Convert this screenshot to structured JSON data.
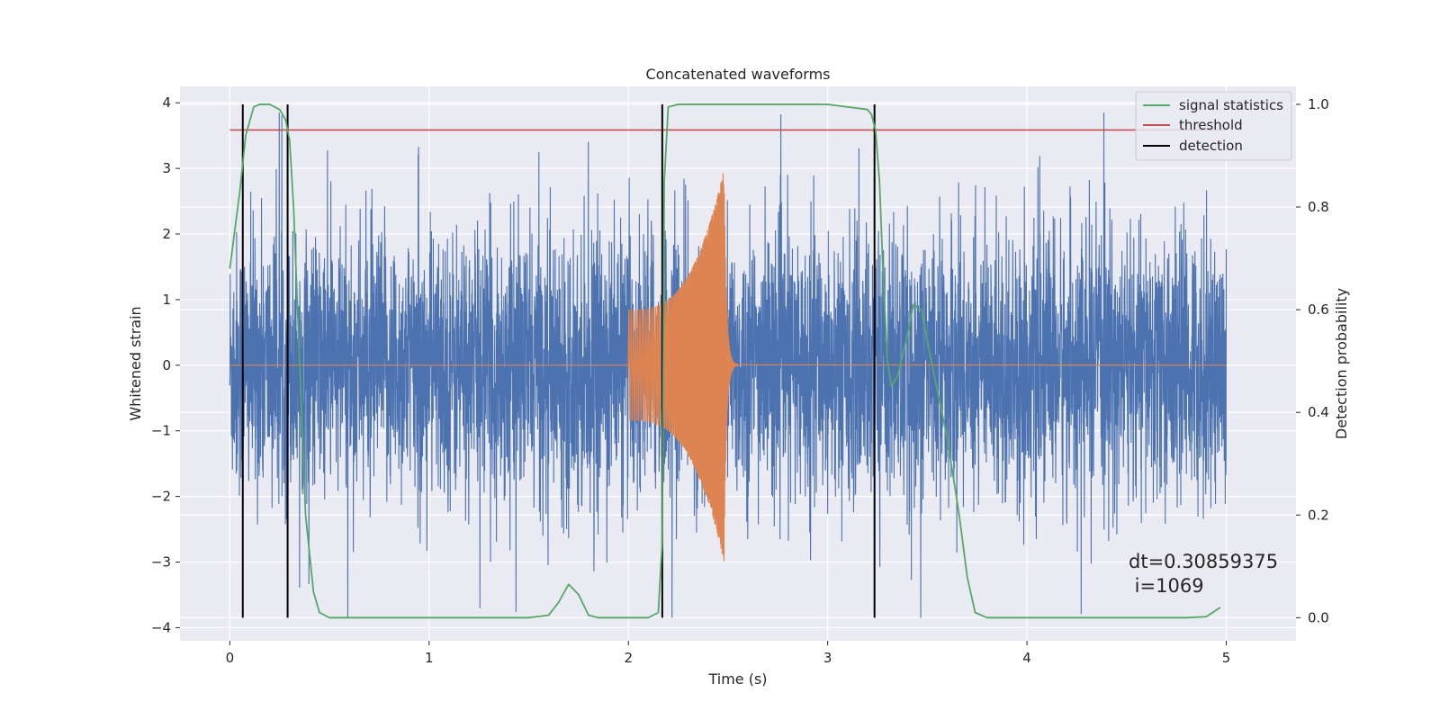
{
  "chart_data": {
    "type": "line",
    "title": "Concatenated waveforms",
    "xlabel": "Time (s)",
    "ylabel": "Whitened strain",
    "y2label": "Detection probability",
    "xlim": [
      -0.25,
      5.35
    ],
    "ylim": [
      -4.2,
      4.25
    ],
    "y2lim": [
      -0.045,
      1.035
    ],
    "grid": true,
    "legend_position": "top-right",
    "x_ticks": [
      0,
      1,
      2,
      3,
      4,
      5
    ],
    "y_ticks": [
      -4,
      -3,
      -2,
      -1,
      0,
      1,
      2,
      3,
      4
    ],
    "y2_ticks": [
      0.0,
      0.2,
      0.4,
      0.6,
      0.8,
      1.0
    ],
    "x_tick_labels": [
      "0",
      "1",
      "2",
      "3",
      "4",
      "5"
    ],
    "y_tick_labels": [
      "−4",
      "−3",
      "−2",
      "−1",
      "0",
      "1",
      "2",
      "3",
      "4"
    ],
    "y2_tick_labels": [
      "0.0",
      "0.2",
      "0.4",
      "0.6",
      "0.8",
      "1.0"
    ],
    "series": [
      {
        "kind": "noise",
        "color": "#4c72b0",
        "x_range": [
          0,
          5
        ],
        "typical_amplitude": 1.0,
        "peak_amplitude": 3.85
      },
      {
        "kind": "chirp",
        "color": "#dd8452",
        "start": 2.0,
        "merger": 2.48,
        "end": 2.55,
        "amp_start": 0.85,
        "amp_peak": 3.0
      },
      {
        "name": "signal statistics",
        "axis": "right",
        "color": "#55a868",
        "x": [
          0,
          0.05,
          0.08,
          0.12,
          0.15,
          0.2,
          0.25,
          0.28,
          0.3,
          0.32,
          0.35,
          0.38,
          0.42,
          0.45,
          0.5,
          1.5,
          1.6,
          1.65,
          1.7,
          1.75,
          1.8,
          1.85,
          2.1,
          2.15,
          2.17,
          2.18,
          2.2,
          2.25,
          3.0,
          3.2,
          3.22,
          3.24,
          3.26,
          3.28,
          3.3,
          3.32,
          3.35,
          3.4,
          3.43,
          3.47,
          3.52,
          3.6,
          3.66,
          3.7,
          3.74,
          3.8,
          4.8,
          4.9,
          4.97
        ],
        "y": [
          0.68,
          0.83,
          0.94,
          0.995,
          1.0,
          1.0,
          0.99,
          0.97,
          0.93,
          0.8,
          0.5,
          0.2,
          0.05,
          0.01,
          0.0,
          0.0,
          0.005,
          0.03,
          0.065,
          0.045,
          0.005,
          0.0,
          0.0,
          0.01,
          0.15,
          0.85,
          0.995,
          1.0,
          1.0,
          0.99,
          0.98,
          0.95,
          0.85,
          0.65,
          0.5,
          0.45,
          0.47,
          0.55,
          0.61,
          0.6,
          0.5,
          0.35,
          0.2,
          0.08,
          0.01,
          0.0,
          0.0,
          0.002,
          0.02
        ]
      },
      {
        "name": "threshold",
        "axis": "right",
        "color": "#c44e52",
        "x": [
          0,
          5
        ],
        "y": [
          0.95,
          0.95
        ]
      },
      {
        "name": "detection",
        "axis": "right",
        "color": "#000000",
        "kind": "vlines",
        "x": [
          0.065,
          0.29,
          2.17,
          3.235
        ],
        "y_range": [
          0.0,
          1.0
        ]
      }
    ],
    "annotation": {
      "line1": "dt=0.30859375",
      "line2": " i=1069"
    }
  }
}
